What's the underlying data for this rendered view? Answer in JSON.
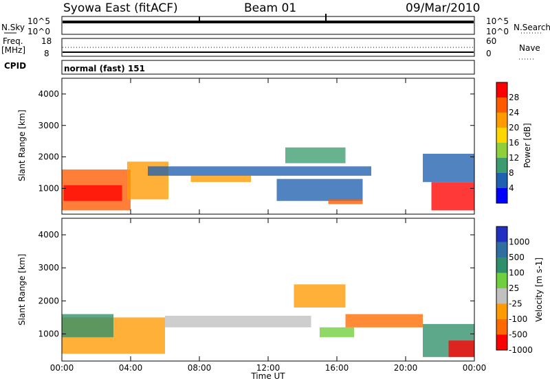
{
  "header": {
    "station": "Syowa East (fitACF)",
    "beam": "Beam 01",
    "date": "09/Mar/2010"
  },
  "noise_panel": {
    "left_label": "N.Sky",
    "right_label": "N.Search",
    "left_ticks": [
      "10^5",
      "10^0"
    ],
    "right_ticks": [
      "10^5",
      "10^0"
    ]
  },
  "freq_panel": {
    "left_label_line1": "Freq.",
    "left_label_line2": "[MHz]",
    "right_label": "Nave",
    "left_ticks": [
      "18",
      "8"
    ],
    "right_ticks": [
      "60",
      "0"
    ]
  },
  "cpid": {
    "label": "CPID",
    "value": "normal (fast) 151"
  },
  "chart_data": [
    {
      "type": "heatmap",
      "ylabel": "Slant Range [km]",
      "xlabel": "Time UT",
      "ylim": [
        180,
        4500
      ],
      "yticks": [
        "1000",
        "2000",
        "3000",
        "4000"
      ],
      "xlim": [
        0,
        24
      ],
      "xticks": [
        "00:00",
        "04:00",
        "08:00",
        "12:00",
        "16:00",
        "20:00",
        "00:00"
      ],
      "colorbar": {
        "label": "Power [dB]",
        "ticks": [
          "28",
          "24",
          "20",
          "16",
          "12",
          "8",
          "4"
        ],
        "colors": [
          "#ff0000",
          "#ff5a00",
          "#ff9a00",
          "#ffd700",
          "#8fcf3c",
          "#3c9c70",
          "#2060b0",
          "#0000ff"
        ]
      },
      "regions": [
        {
          "t0": 0.0,
          "t1": 4.0,
          "r0": 300,
          "r1": 1600,
          "color": "#ff5a00"
        },
        {
          "t0": 0.1,
          "t1": 3.5,
          "r0": 600,
          "r1": 1100,
          "color": "#ff0000"
        },
        {
          "t0": 3.8,
          "t1": 6.2,
          "r0": 650,
          "r1": 1850,
          "color": "#ff9a00"
        },
        {
          "t0": 5.0,
          "t1": 18.0,
          "r0": 1400,
          "r1": 1700,
          "color": "#2060b0"
        },
        {
          "t0": 7.5,
          "t1": 11.0,
          "r0": 1200,
          "r1": 1400,
          "color": "#ff9a00"
        },
        {
          "t0": 12.5,
          "t1": 17.5,
          "r0": 600,
          "r1": 1300,
          "color": "#2060b0"
        },
        {
          "t0": 15.5,
          "t1": 17.5,
          "r0": 500,
          "r1": 650,
          "color": "#ff5a00"
        },
        {
          "t0": 13.0,
          "t1": 16.5,
          "r0": 1800,
          "r1": 2300,
          "color": "#3c9c70"
        },
        {
          "t0": 21.5,
          "t1": 24.0,
          "r0": 300,
          "r1": 1200,
          "color": "#ff0000"
        },
        {
          "t0": 21.0,
          "t1": 24.0,
          "r0": 1200,
          "r1": 2100,
          "color": "#2060b0"
        }
      ]
    },
    {
      "type": "heatmap",
      "ylabel": "Slant Range [km]",
      "xlabel": "Time UT",
      "ylim": [
        180,
        4500
      ],
      "yticks": [
        "1000",
        "2000",
        "3000",
        "4000"
      ],
      "xlim": [
        0,
        24
      ],
      "xticks": [
        "00:00",
        "04:00",
        "08:00",
        "12:00",
        "16:00",
        "20:00",
        "00:00"
      ],
      "colorbar": {
        "label": "Velocity [m s-1]",
        "ticks": [
          "1000",
          "500",
          "100",
          "25",
          "-25",
          "-100",
          "-500",
          "-1000"
        ],
        "colors": [
          "#2030c0",
          "#2e6ea0",
          "#2f8f6a",
          "#6fcf3c",
          "#c0c0c0",
          "#ff9a00",
          "#ff6a00",
          "#ff0000"
        ]
      },
      "regions": [
        {
          "t0": 0.0,
          "t1": 6.0,
          "r0": 400,
          "r1": 1500,
          "color": "#ff9a00"
        },
        {
          "t0": 0.0,
          "t1": 3.0,
          "r0": 900,
          "r1": 1600,
          "color": "#2f8f6a"
        },
        {
          "t0": 6.0,
          "t1": 14.5,
          "r0": 1200,
          "r1": 1550,
          "color": "#c0c0c0"
        },
        {
          "t0": 13.5,
          "t1": 16.5,
          "r0": 1800,
          "r1": 2500,
          "color": "#ff9a00"
        },
        {
          "t0": 15.0,
          "t1": 17.0,
          "r0": 900,
          "r1": 1200,
          "color": "#6fcf3c"
        },
        {
          "t0": 16.5,
          "t1": 21.0,
          "r0": 1200,
          "r1": 1600,
          "color": "#ff6a00"
        },
        {
          "t0": 21.0,
          "t1": 24.0,
          "r0": 300,
          "r1": 1300,
          "color": "#2f8f6a"
        },
        {
          "t0": 22.5,
          "t1": 24.0,
          "r0": 300,
          "r1": 800,
          "color": "#ff0000"
        }
      ]
    }
  ]
}
